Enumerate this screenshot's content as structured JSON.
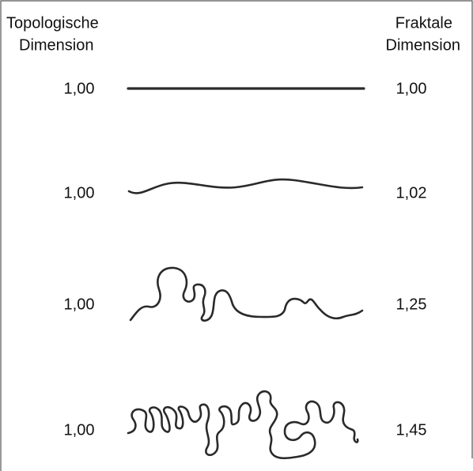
{
  "header": {
    "left": [
      "Topologische",
      "Dimension"
    ],
    "right": [
      "Fraktale",
      "Dimension"
    ]
  },
  "rows": [
    {
      "topological": "1,00",
      "fractal": "1,00"
    },
    {
      "topological": "1,00",
      "fractal": "1,02"
    },
    {
      "topological": "1,00",
      "fractal": "1,25"
    },
    {
      "topological": "1,00",
      "fractal": "1,45"
    }
  ]
}
